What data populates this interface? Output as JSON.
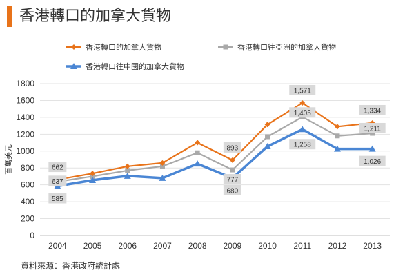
{
  "header": {
    "title": "香港轉口的加拿大貨物"
  },
  "footer": {
    "source": "資料來源：香港政府統計處"
  },
  "colors": {
    "accent": "#e8731a",
    "orange": "#e8731a",
    "gray": "#a9a9a9",
    "blue": "#4a86d4",
    "label_bg": "#d9d9d9"
  },
  "chart_data": {
    "type": "line",
    "ylabel": "百萬美元",
    "ylim": [
      0,
      1800
    ],
    "yticks": [
      0,
      200,
      400,
      600,
      800,
      1000,
      1200,
      1400,
      1600,
      1800
    ],
    "categories": [
      "2004",
      "2005",
      "2006",
      "2007",
      "2008",
      "2009",
      "2010",
      "2011",
      "2012",
      "2013"
    ],
    "grid": true,
    "legend_position": "top",
    "series": [
      {
        "name": "香港轉口的加拿大貨物",
        "color": "#e8731a",
        "marker": "diamond",
        "values": [
          662,
          735,
          820,
          860,
          1100,
          893,
          1315,
          1571,
          1290,
          1334
        ]
      },
      {
        "name": "香港轉口往亞洲的加拿大貨物",
        "color": "#a9a9a9",
        "marker": "square",
        "values": [
          637,
          700,
          770,
          820,
          980,
          777,
          1170,
          1405,
          1180,
          1211
        ]
      },
      {
        "name": "香港轉口往中國的加拿大貨物",
        "color": "#4a86d4",
        "marker": "triangle",
        "values": [
          585,
          655,
          705,
          680,
          850,
          680,
          1055,
          1258,
          1026,
          1026
        ]
      }
    ],
    "data_labels": [
      {
        "series": 0,
        "index": 0,
        "text": "662",
        "pos": "above"
      },
      {
        "series": 1,
        "index": 0,
        "text": "637",
        "pos": "mid"
      },
      {
        "series": 2,
        "index": 0,
        "text": "585",
        "pos": "below"
      },
      {
        "series": 0,
        "index": 5,
        "text": "893",
        "pos": "above"
      },
      {
        "series": 1,
        "index": 5,
        "text": "777",
        "pos": "mid"
      },
      {
        "series": 2,
        "index": 5,
        "text": "680",
        "pos": "below"
      },
      {
        "series": 0,
        "index": 7,
        "text": "1,571",
        "pos": "above"
      },
      {
        "series": 1,
        "index": 7,
        "text": "1,405",
        "pos": "mid"
      },
      {
        "series": 2,
        "index": 7,
        "text": "1,258",
        "pos": "below"
      },
      {
        "series": 0,
        "index": 9,
        "text": "1,334",
        "pos": "above"
      },
      {
        "series": 1,
        "index": 9,
        "text": "1,211",
        "pos": "mid"
      },
      {
        "series": 2,
        "index": 9,
        "text": "1,026",
        "pos": "below"
      }
    ]
  }
}
